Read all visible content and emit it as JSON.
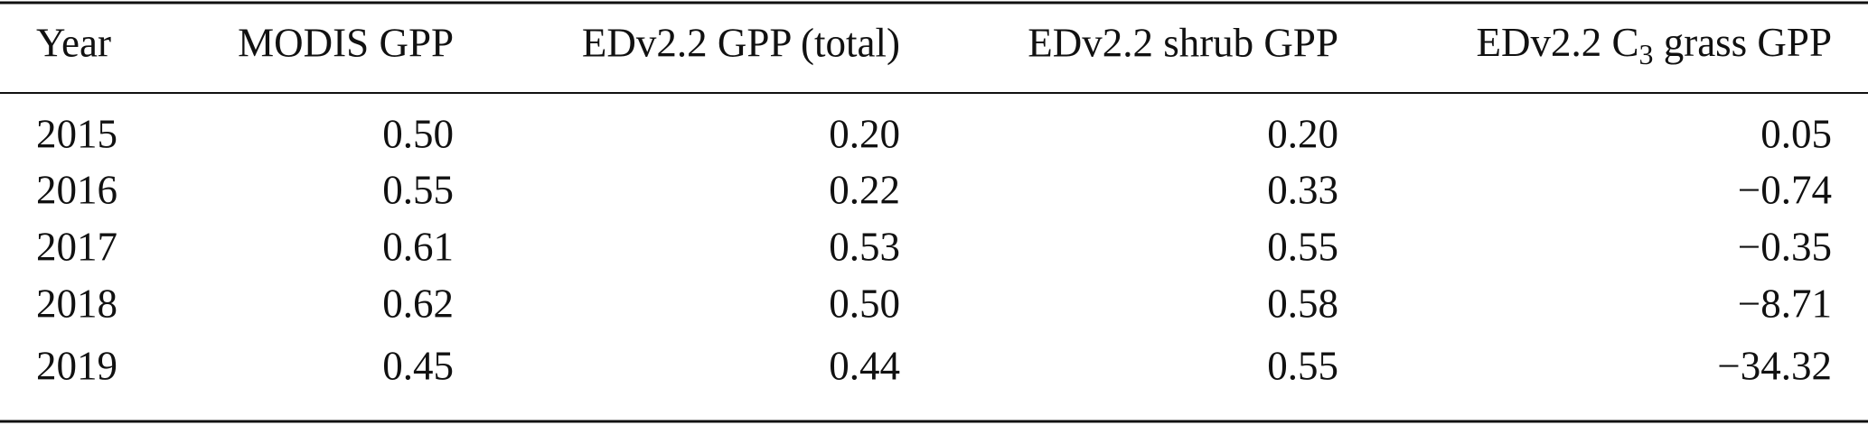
{
  "table": {
    "header": [
      "Year",
      "MODIS GPP",
      "EDv2.2 GPP (total)",
      "EDv2.2 shrub GPP",
      {
        "prefix": "EDv2.2 C",
        "subscript": "3",
        "suffix": " grass GPP"
      }
    ],
    "rows": [
      [
        "2015",
        "0.50",
        "0.20",
        "0.20",
        "0.05"
      ],
      [
        "2016",
        "0.55",
        "0.22",
        "0.33",
        "−0.74"
      ],
      [
        "2017",
        "0.61",
        "0.53",
        "0.55",
        "−0.35"
      ],
      [
        "2018",
        "0.62",
        "0.50",
        "0.58",
        "−8.71"
      ],
      [
        "2019",
        "0.45",
        "0.44",
        "0.55",
        "−34.32"
      ]
    ]
  }
}
